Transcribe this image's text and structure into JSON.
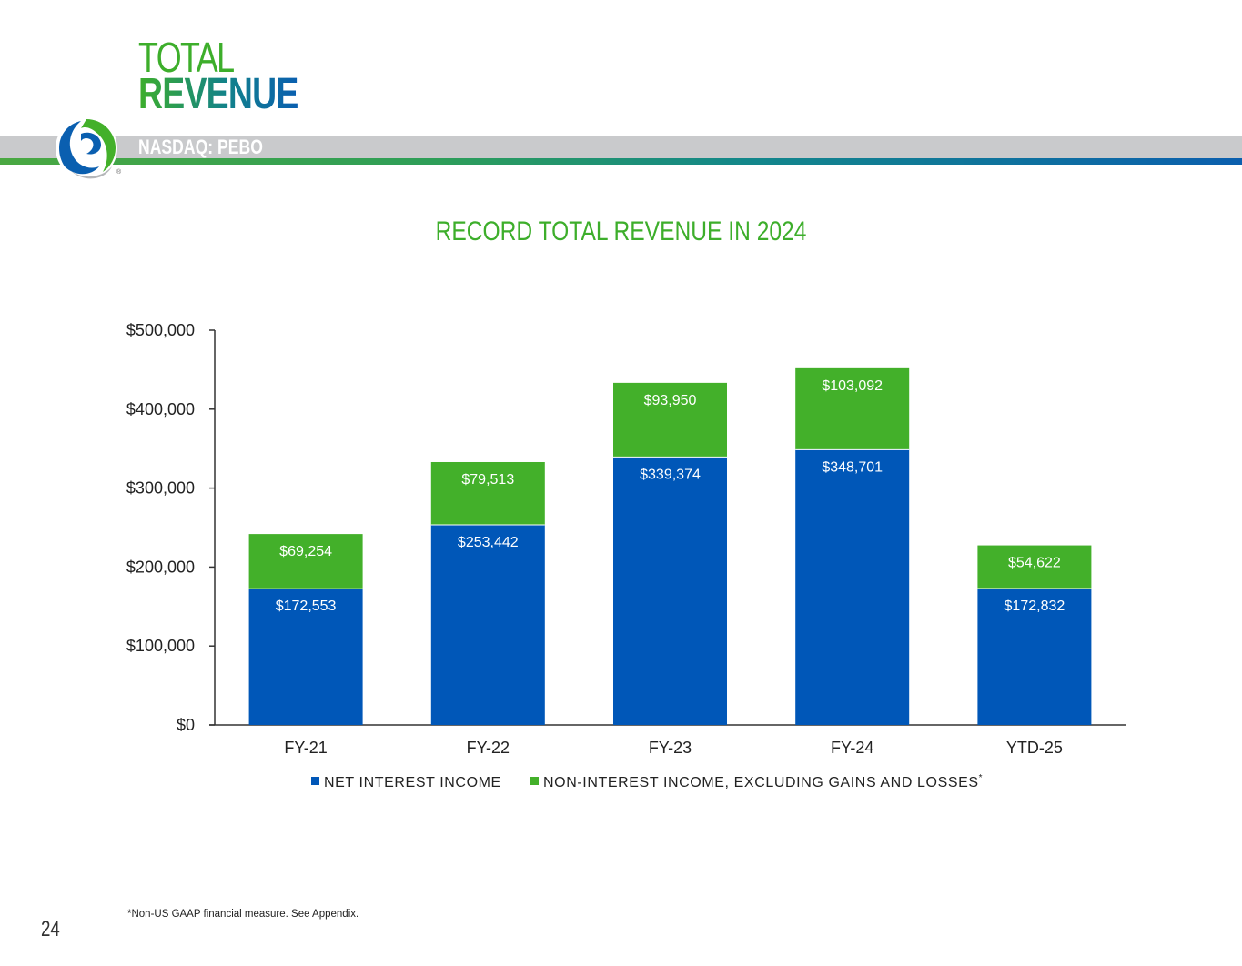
{
  "header": {
    "title_line1": "TOTAL",
    "title_line2": "REVENUE",
    "ticker": "NASDAQ: PEBO",
    "logo_trademark": "®"
  },
  "colors": {
    "net_interest": "#0057b8",
    "non_interest": "#43b02a",
    "title_green": "#3dae2b",
    "axis": "#333333"
  },
  "chart_data": {
    "type": "bar",
    "stacked": true,
    "title": "RECORD TOTAL REVENUE IN 2024",
    "categories": [
      "FY-21",
      "FY-22",
      "FY-23",
      "FY-24",
      "YTD-25"
    ],
    "series": [
      {
        "name": "NET INTEREST INCOME",
        "values": [
          172553,
          253442,
          339374,
          348701,
          172832
        ],
        "labels": [
          "$172,553",
          "$253,442",
          "$339,374",
          "$348,701",
          "$172,832"
        ]
      },
      {
        "name": "NON-INTEREST INCOME, EXCLUDING GAINS AND LOSSES",
        "name_suffix": "*",
        "values": [
          69254,
          79513,
          93950,
          103092,
          54622
        ],
        "labels": [
          "$69,254",
          "$79,513",
          "$93,950",
          "$103,092",
          "$54,622"
        ]
      }
    ],
    "ylim": [
      0,
      500000
    ],
    "yticks": [
      0,
      100000,
      200000,
      300000,
      400000,
      500000
    ],
    "ytick_labels": [
      "$0",
      "$100,000",
      "$200,000",
      "$300,000",
      "$400,000",
      "$500,000"
    ],
    "xlabel": "",
    "ylabel": "",
    "grid": false,
    "legend": "bottom"
  },
  "footer": {
    "footnote": "*Non-US GAAP financial measure. See Appendix.",
    "page_number": "24"
  }
}
